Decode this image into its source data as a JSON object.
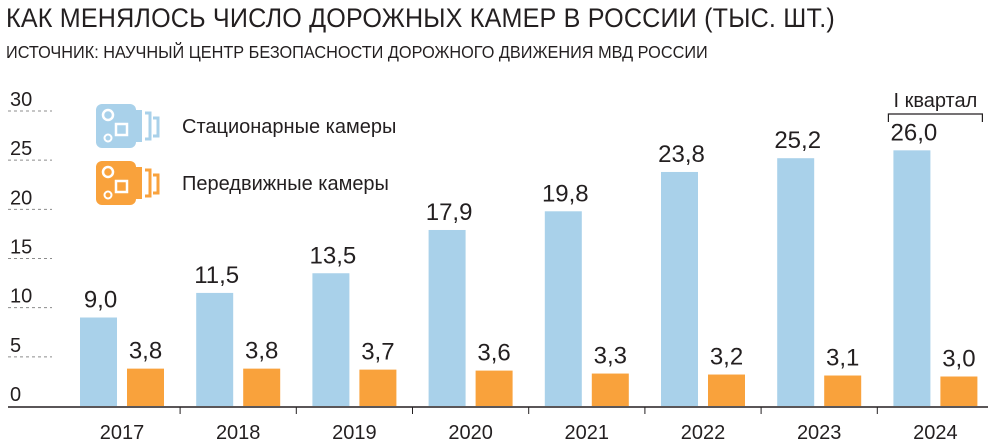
{
  "header": {
    "title": "КАК МЕНЯЛОСЬ ЧИСЛО ДОРОЖНЫХ КАМЕР В РОССИИ (ТЫС. ШТ.)",
    "subtitle": "ИСТОЧНИК: НАУЧНЫЙ ЦЕНТР БЕЗОПАСНОСТИ ДОРОЖНОГО ДВИЖЕНИЯ МВД РОССИИ"
  },
  "colors": {
    "stationary": "#a9d1ea",
    "mobile": "#f9a23c",
    "text": "#231f20",
    "grid": "#8c8c8c"
  },
  "chart_data": {
    "type": "bar",
    "categories": [
      "2017",
      "2018",
      "2019",
      "2020",
      "2021",
      "2022",
      "2023",
      "2024"
    ],
    "series": [
      {
        "name": "Стационарные камеры",
        "values": [
          9.0,
          11.5,
          13.5,
          17.9,
          19.8,
          23.8,
          25.2,
          26.0
        ],
        "labels": [
          "9,0",
          "11,5",
          "13,5",
          "17,9",
          "19,8",
          "23,8",
          "25,2",
          "26,0"
        ],
        "color": "#a9d1ea",
        "icon": "camera-icon"
      },
      {
        "name": "Передвижные камеры",
        "values": [
          3.8,
          3.8,
          3.7,
          3.6,
          3.3,
          3.2,
          3.1,
          3.0
        ],
        "labels": [
          "3,8",
          "3,8",
          "3,7",
          "3,6",
          "3,3",
          "3,2",
          "3,1",
          "3,0"
        ],
        "color": "#f9a23c",
        "icon": "camera-icon"
      }
    ],
    "yticks": [
      0,
      5,
      10,
      15,
      20,
      25,
      30
    ],
    "ylim": [
      0,
      30
    ],
    "grid": true,
    "legend_position": "top-left",
    "annotation": {
      "category": "2024",
      "text": "I квартал"
    }
  }
}
